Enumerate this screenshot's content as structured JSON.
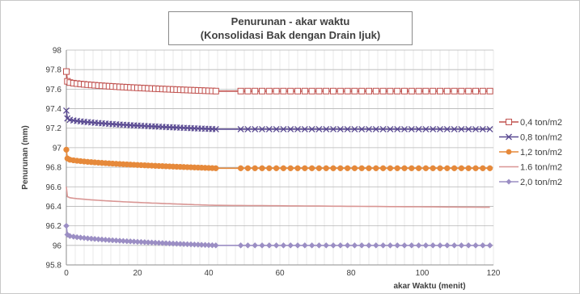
{
  "chart_data": {
    "type": "line",
    "title_line1": "Penurunan - akar waktu",
    "title_line2": "(Konsolidasi  Bak dengan Drain Ijuk)",
    "xlabel": "akar Waktu (menit)",
    "ylabel": "Penurunan (mm)",
    "xlim": [
      0,
      120
    ],
    "ylim": [
      95.8,
      98
    ],
    "xticks": [
      0,
      20,
      40,
      60,
      80,
      100,
      120
    ],
    "yticks": [
      95.8,
      96,
      96.2,
      96.4,
      96.6,
      96.8,
      97,
      97.2,
      97.4,
      97.6,
      97.8,
      98
    ],
    "grid": true,
    "legend_position": "right",
    "series": [
      {
        "name": "0,4 ton/m2",
        "color": "#c0504d",
        "marker": "square",
        "start": 97.78,
        "drop": 97.68,
        "early_end": 97.58,
        "plateau": 97.58,
        "gap": [
          42,
          49
        ]
      },
      {
        "name": "0,8 ton/m2",
        "color": "#5a4a92",
        "marker": "x",
        "start": 97.38,
        "drop": 97.3,
        "early_end": 97.19,
        "plateau": 97.19,
        "gap": [
          42,
          49
        ]
      },
      {
        "name": "1,2 ton/m2",
        "color": "#e6893a",
        "marker": "circle",
        "start": 96.98,
        "drop": 96.89,
        "early_end": 96.79,
        "plateau": 96.79,
        "gap": [
          42,
          49
        ]
      },
      {
        "name": "1.6 ton/m2",
        "color": "#d99694",
        "marker": "none",
        "start": 96.6,
        "drop": 96.5,
        "early_end": 96.41,
        "plateau": 96.39,
        "gap": null
      },
      {
        "name": "2,0 ton/m2",
        "color": "#9b8ec4",
        "marker": "diamond",
        "start": 96.2,
        "drop": 96.11,
        "early_end": 96.0,
        "plateau": 96.0,
        "gap": [
          42,
          49
        ]
      }
    ]
  }
}
